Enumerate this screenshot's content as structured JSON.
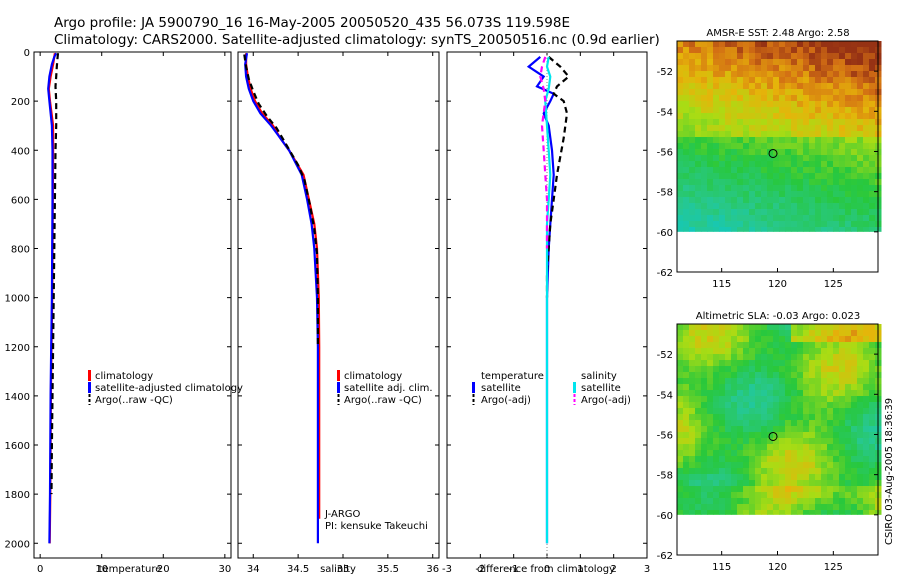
{
  "header": {
    "line1": "Argo profile: JA 5900790_16 16-May-2005 20050520_435 56.073S 119.598E",
    "line2": "Climatology: CARS2000. Satellite-adjusted climatology: synTS_20050516.nc (0.9d earlier)"
  },
  "credit": "CSIRO 03-Aug-2005 18:36:39",
  "colors": {
    "red": "#ff0000",
    "blue": "#0000ff",
    "black": "#000000",
    "cyan": "#00e5ee",
    "magenta": "#ff00ff"
  },
  "chart_data": [
    {
      "id": "temperature",
      "type": "line",
      "xlabel": "temperature",
      "xlim": [
        -1,
        31
      ],
      "ylim": [
        2060,
        0
      ],
      "xticks": [
        0,
        10,
        20,
        30
      ],
      "yticks": [
        0,
        200,
        400,
        600,
        800,
        1000,
        1200,
        1400,
        1600,
        1800,
        2000
      ],
      "legend": [
        "climatology",
        "satellite-adjusted climatology",
        "Argo(..raw -QC)"
      ],
      "series": [
        {
          "name": "climatology",
          "color": "red",
          "x": [
            2.4,
            2.3,
            2.1,
            1.7,
            1.4,
            1.6,
            2.1,
            2.1,
            2.05,
            2.0,
            1.95,
            1.85,
            1.75,
            1.7,
            1.65,
            1.6,
            1.55
          ],
          "y": [
            5,
            20,
            50,
            100,
            150,
            200,
            300,
            400,
            600,
            800,
            1000,
            1200,
            1400,
            1600,
            1800,
            1900,
            2000
          ]
        },
        {
          "name": "satellite",
          "color": "blue",
          "x": [
            2.6,
            2.3,
            1.9,
            1.5,
            1.3,
            1.5,
            1.9,
            2.0,
            2.0,
            1.95,
            1.9,
            1.8,
            1.7,
            1.65,
            1.6,
            1.55,
            1.5
          ],
          "y": [
            5,
            20,
            50,
            100,
            150,
            200,
            300,
            400,
            600,
            800,
            1000,
            1200,
            1400,
            1600,
            1800,
            1900,
            2000
          ]
        },
        {
          "name": "Argo",
          "color": "black",
          "dash": true,
          "x": [
            2.9,
            2.8,
            2.7,
            2.6,
            2.5,
            2.6,
            2.6,
            2.5,
            2.4,
            2.3,
            2.2,
            2.1,
            2.0,
            1.9,
            1.85
          ],
          "y": [
            5,
            30,
            60,
            100,
            140,
            200,
            300,
            400,
            600,
            800,
            1000,
            1200,
            1400,
            1600,
            1800
          ]
        }
      ]
    },
    {
      "id": "salinity",
      "type": "line",
      "xlabel": "salinity",
      "xlim": [
        33.83,
        36.07
      ],
      "ylim": [
        2060,
        0
      ],
      "xticks": [
        34,
        34.5,
        35,
        35.5,
        36
      ],
      "yticks": [
        0,
        200,
        400,
        600,
        800,
        1000,
        1200,
        1400,
        1600,
        1800,
        2000
      ],
      "legend": [
        "climatology",
        "satellite adj. clim.",
        "Argo(..raw -QC)"
      ],
      "note": [
        "J-ARGO",
        "PI: kensuke Takeuchi"
      ],
      "series": [
        {
          "name": "climatology",
          "color": "red",
          "x": [
            33.92,
            33.92,
            33.94,
            33.97,
            34.02,
            34.1,
            34.22,
            34.3,
            34.4,
            34.48,
            34.56,
            34.62,
            34.68,
            34.71,
            34.73,
            34.735,
            34.735,
            34.735
          ],
          "y": [
            5,
            50,
            100,
            150,
            200,
            250,
            300,
            350,
            400,
            450,
            500,
            600,
            700,
            800,
            1000,
            1200,
            1600,
            1900
          ]
        },
        {
          "name": "satellite",
          "color": "blue",
          "x": [
            33.93,
            33.91,
            33.92,
            33.95,
            34.0,
            34.08,
            34.2,
            34.3,
            34.4,
            34.47,
            34.54,
            34.6,
            34.65,
            34.68,
            34.71,
            34.72,
            34.72,
            34.72
          ],
          "y": [
            5,
            50,
            100,
            150,
            200,
            250,
            300,
            350,
            400,
            450,
            500,
            600,
            700,
            800,
            1000,
            1200,
            1600,
            2000
          ]
        },
        {
          "name": "Argo",
          "color": "black",
          "dash": true,
          "x": [
            33.9,
            33.92,
            33.95,
            34.0,
            34.06,
            34.15,
            34.26,
            34.34,
            34.42,
            34.5,
            34.57,
            34.63,
            34.68,
            34.71,
            34.72,
            34.72
          ],
          "y": [
            10,
            60,
            110,
            160,
            210,
            260,
            310,
            360,
            410,
            460,
            520,
            620,
            720,
            820,
            1000,
            1200
          ]
        }
      ]
    },
    {
      "id": "difference",
      "type": "line",
      "xlabel": "difference from climatology",
      "xlim": [
        -3,
        3
      ],
      "ylim": [
        2060,
        0
      ],
      "xticks": [
        -3,
        -2,
        -1,
        0,
        1,
        2,
        3
      ],
      "yticks": [
        0,
        200,
        400,
        600,
        800,
        1000,
        1200,
        1400,
        1600,
        1800,
        2000
      ],
      "legend_left": [
        "temperature",
        "satellite",
        "Argo(-adj)"
      ],
      "legend_right": [
        "salinity",
        "satellite",
        "Argo(-adj)"
      ],
      "series": [
        {
          "name": "temperature satellite",
          "color": "blue",
          "x": [
            -0.2,
            -0.55,
            -0.1,
            -0.3,
            0.2,
            0.1,
            -0.1,
            0.05,
            0.15,
            0.2,
            0.15,
            0.1,
            0.05,
            0.0,
            0.0,
            0.0,
            0.0,
            0.0
          ],
          "y": [
            20,
            60,
            100,
            140,
            170,
            200,
            250,
            300,
            400,
            500,
            600,
            700,
            800,
            1000,
            1200,
            1400,
            1800,
            2000
          ]
        },
        {
          "name": "temperature Argo",
          "color": "black",
          "dash": true,
          "x": [
            0.05,
            0.4,
            0.65,
            0.3,
            0.2,
            0.5,
            0.6,
            0.5,
            0.3,
            0.2,
            0.1,
            0.05,
            0.0,
            0.0
          ],
          "y": [
            20,
            60,
            100,
            140,
            170,
            200,
            250,
            350,
            500,
            600,
            700,
            800,
            900,
            1000
          ]
        },
        {
          "name": "salinity satellite",
          "color": "cyan",
          "x": [
            0.05,
            0.0,
            0.1,
            0.05,
            -0.05,
            0.0,
            0.05,
            0.1,
            0.05,
            0.0,
            0.0,
            0.0,
            0.0,
            0.0
          ],
          "y": [
            20,
            60,
            100,
            150,
            200,
            300,
            400,
            500,
            600,
            700,
            800,
            1000,
            1400,
            2000
          ]
        },
        {
          "name": "salinity Argo",
          "color": "magenta",
          "dash": true,
          "x": [
            -0.05,
            -0.15,
            -0.2,
            -0.1,
            -0.05,
            -0.15,
            -0.1,
            -0.05,
            0.0,
            0.0,
            0.0
          ],
          "y": [
            20,
            60,
            100,
            150,
            200,
            300,
            400,
            500,
            600,
            700,
            800
          ]
        }
      ]
    },
    {
      "id": "sst-map",
      "type": "heatmap",
      "title": "AMSR-E SST: 2.48 Argo: 2.58",
      "xlim": [
        111,
        129
      ],
      "ylim": [
        -62,
        -50.5
      ],
      "xticks": [
        115,
        120,
        125
      ],
      "yticks": [
        -52,
        -54,
        -56,
        -58,
        -60,
        -62
      ],
      "marker": {
        "lon": 119.6,
        "lat": -56.1
      },
      "data_top": -50.5,
      "data_bottom": -60.0
    },
    {
      "id": "sla-map",
      "type": "heatmap",
      "title": "Altimetric SLA: -0.03 Argo: 0.023",
      "xlim": [
        111,
        129
      ],
      "ylim": [
        -62,
        -50.5
      ],
      "xticks": [
        115,
        120,
        125
      ],
      "yticks": [
        -52,
        -54,
        -56,
        -58,
        -60,
        -62
      ],
      "marker": {
        "lon": 119.6,
        "lat": -56.1
      },
      "data_top": -50.5,
      "data_bottom": -60.0
    }
  ]
}
